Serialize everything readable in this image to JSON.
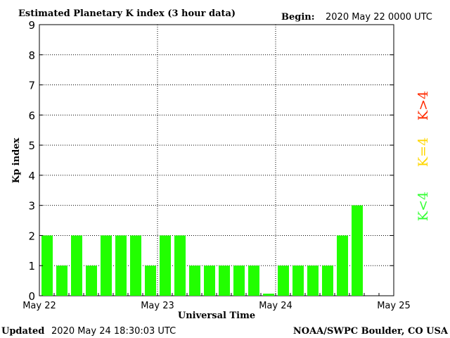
{
  "header": {
    "title": "Estimated Planetary K index (3 hour data)",
    "begin_label": "Begin:",
    "begin_value": "2020 May 22 0000 UTC"
  },
  "footer": {
    "updated_label": "Updated",
    "updated_value": "2020 May 24 18:30:03 UTC",
    "source": "NOAA/SWPC Boulder, CO USA"
  },
  "legend": {
    "high": {
      "label": "K>4",
      "color": "#ff2a00"
    },
    "equal": {
      "label": "K=4",
      "color": "#ffd700"
    },
    "low": {
      "label": "K<4",
      "color": "#33ff33"
    }
  },
  "chart_data": {
    "type": "bar",
    "title": "Estimated Planetary K index (3 hour data)",
    "xlabel": "Universal Time",
    "ylabel": "Kp index",
    "ylim": [
      0,
      9
    ],
    "yticks": [
      0,
      1,
      2,
      3,
      4,
      5,
      6,
      7,
      8,
      9
    ],
    "xtick_labels": [
      "May 22",
      "May 23",
      "May 24",
      "May 25"
    ],
    "slots_per_day": 8,
    "grid": true,
    "bar_color": "#22ff00",
    "values": [
      2,
      1,
      2,
      1,
      2,
      2,
      2,
      1,
      2,
      2,
      1,
      1,
      1,
      1,
      1,
      0.07,
      1,
      1,
      1,
      1,
      2,
      3
    ]
  }
}
